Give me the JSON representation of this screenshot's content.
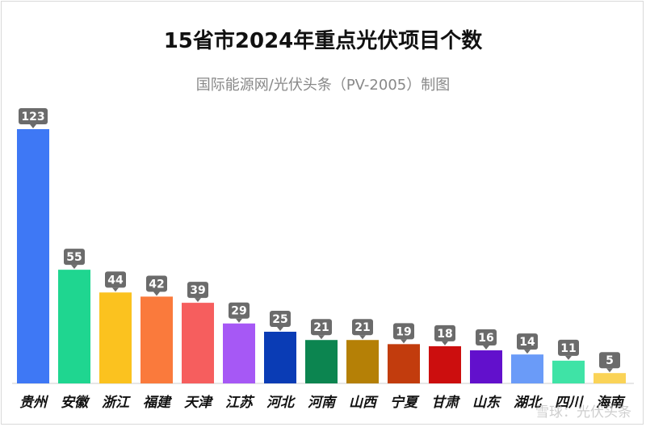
{
  "chart_data": {
    "type": "bar",
    "title": "15省市2024年重点光伏项目个数",
    "subtitle": "国际能源网/光伏头条（PV-2005）制图",
    "categories": [
      "贵州",
      "安徽",
      "浙江",
      "福建",
      "天津",
      "江苏",
      "河北",
      "河南",
      "山西",
      "宁夏",
      "甘肃",
      "山东",
      "湖北",
      "四川",
      "海南"
    ],
    "values": [
      123,
      55,
      44,
      42,
      39,
      29,
      25,
      21,
      21,
      19,
      18,
      16,
      14,
      11,
      5
    ],
    "colors": [
      "#3E78F5",
      "#1FD690",
      "#FBC21F",
      "#FA7A3C",
      "#F65E5E",
      "#A658F5",
      "#0A3CB5",
      "#0C8550",
      "#B58006",
      "#C23C0D",
      "#CC0E0E",
      "#6210CC",
      "#6A9BF8",
      "#3FE3A6",
      "#FAD357"
    ],
    "label_bg": "#6b6b6b",
    "ylim": [
      0,
      123
    ],
    "grid": false,
    "legend": "none"
  },
  "watermark": "雪球：光伏头条"
}
